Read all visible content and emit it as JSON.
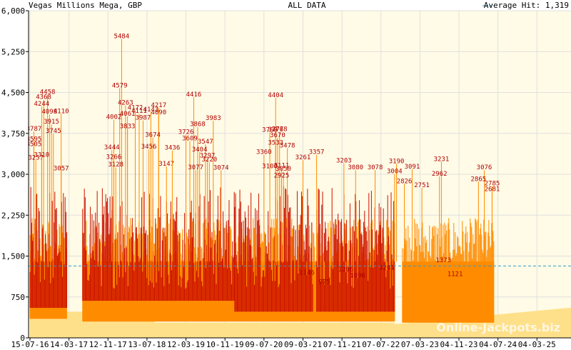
{
  "chart_data": {
    "type": "bar",
    "title": "Vegas Millions Mega, GBP",
    "subtitle": "ALL DATA",
    "legend": {
      "label": "Average Hit: 1,319",
      "placement": "top-right"
    },
    "average_hit": 1319,
    "ylim": [
      0,
      6000
    ],
    "yticks": [
      0,
      750,
      1500,
      2250,
      3000,
      3750,
      4500,
      5250,
      6000
    ],
    "ytick_labels": [
      "0",
      "750",
      "1,500",
      "2,250",
      "3,000",
      "3,750",
      "4,500",
      "5,250",
      "6,000"
    ],
    "xticks": [
      "15-07-16",
      "14-03-17",
      "12-11-17",
      "13-07-18",
      "12-03-19",
      "10-11-19",
      "09-07-20",
      "09-03-21",
      "07-11-21",
      "07-07-22",
      "07-03-23",
      "04-11-23",
      "04-07-24",
      "04-03-25"
    ],
    "watermark": "Online-Jackpots.biz",
    "colors": {
      "plot_bg": "#fffbe6",
      "baseline_fill": "#ffe08a",
      "hit_fill": "#ff8c00",
      "red_hits": "#cc1100",
      "average_line": "#3399cc",
      "label": "#b00000",
      "grid": "#e0e0e0"
    },
    "baseline": {
      "x": [
        0.0,
        0.3,
        0.3,
        3.2,
        3.2,
        9.35,
        9.35,
        13.8
      ],
      "y": [
        350,
        350,
        480,
        480,
        280,
        280,
        250,
        550
      ]
    },
    "segments": [
      {
        "x0": 0.0,
        "x1": 0.95,
        "base": 350,
        "orange_top": 2300,
        "red": true
      },
      {
        "x0": 1.35,
        "x1": 5.25,
        "base": 480,
        "orange_top": 2300,
        "red": true
      },
      {
        "x0": 5.25,
        "x1": 7.25,
        "base": 280,
        "orange_top": 1850,
        "red": true
      },
      {
        "x0": 7.35,
        "x1": 9.35,
        "base": 280,
        "orange_top": 1700,
        "red": true
      }
    ],
    "peaks": [
      {
        "x": 0.45,
        "y": 4458,
        "label": "4458"
      },
      {
        "x": 0.35,
        "y": 4368,
        "label": "4368"
      },
      {
        "x": 0.3,
        "y": 4244,
        "label": "4244"
      },
      {
        "x": 0.5,
        "y": 4098,
        "label": "4098"
      },
      {
        "x": 0.8,
        "y": 4110,
        "label": "4110"
      },
      {
        "x": 0.55,
        "y": 3915,
        "label": "3915"
      },
      {
        "x": 0.1,
        "y": 3787,
        "label": "3787"
      },
      {
        "x": 0.6,
        "y": 3745,
        "label": "3745"
      },
      {
        "x": 0.1,
        "y": 3595,
        "label": "3595"
      },
      {
        "x": 0.1,
        "y": 3505,
        "label": "3505"
      },
      {
        "x": 0.15,
        "y": 3257,
        "label": "3257"
      },
      {
        "x": 0.3,
        "y": 3310,
        "label": "3310"
      },
      {
        "x": 0.8,
        "y": 3057,
        "label": "3057"
      },
      {
        "x": 2.35,
        "y": 5484,
        "label": "5484"
      },
      {
        "x": 2.3,
        "y": 4579,
        "label": "4579"
      },
      {
        "x": 2.45,
        "y": 4263,
        "label": "4263"
      },
      {
        "x": 2.5,
        "y": 4061,
        "label": "4061"
      },
      {
        "x": 2.7,
        "y": 4172,
        "label": "4172"
      },
      {
        "x": 2.8,
        "y": 4111,
        "label": "4111"
      },
      {
        "x": 3.1,
        "y": 4143,
        "label": "4143"
      },
      {
        "x": 3.3,
        "y": 4217,
        "label": "4217"
      },
      {
        "x": 3.3,
        "y": 4090,
        "label": "4090"
      },
      {
        "x": 2.15,
        "y": 4002,
        "label": "4002"
      },
      {
        "x": 2.9,
        "y": 3987,
        "label": "3987"
      },
      {
        "x": 2.5,
        "y": 3833,
        "label": "3833"
      },
      {
        "x": 3.15,
        "y": 3674,
        "label": "3674"
      },
      {
        "x": 2.1,
        "y": 3444,
        "label": "3444"
      },
      {
        "x": 3.05,
        "y": 3456,
        "label": "3456"
      },
      {
        "x": 2.15,
        "y": 3266,
        "label": "3266"
      },
      {
        "x": 2.2,
        "y": 3128,
        "label": "3128"
      },
      {
        "x": 3.5,
        "y": 3147,
        "label": "3147"
      },
      {
        "x": 3.65,
        "y": 3436,
        "label": "3436"
      },
      {
        "x": 4.2,
        "y": 4416,
        "label": "4416"
      },
      {
        "x": 4.3,
        "y": 3868,
        "label": "3868"
      },
      {
        "x": 4.7,
        "y": 3983,
        "label": "3983"
      },
      {
        "x": 4.5,
        "y": 3547,
        "label": "3547"
      },
      {
        "x": 4.0,
        "y": 3726,
        "label": "3726"
      },
      {
        "x": 4.1,
        "y": 3609,
        "label": "3609"
      },
      {
        "x": 4.35,
        "y": 3404,
        "label": "3404"
      },
      {
        "x": 4.55,
        "y": 3297,
        "label": "3297"
      },
      {
        "x": 4.6,
        "y": 3220,
        "label": "3220"
      },
      {
        "x": 4.25,
        "y": 3077,
        "label": "3077"
      },
      {
        "x": 4.9,
        "y": 3074,
        "label": "3074"
      },
      {
        "x": 6.3,
        "y": 4404,
        "label": "4404"
      },
      {
        "x": 6.15,
        "y": 3769,
        "label": "3769"
      },
      {
        "x": 6.3,
        "y": 3776,
        "label": "3776"
      },
      {
        "x": 6.4,
        "y": 3778,
        "label": "3778"
      },
      {
        "x": 6.35,
        "y": 3670,
        "label": "3670"
      },
      {
        "x": 6.6,
        "y": 3478,
        "label": "3478"
      },
      {
        "x": 6.3,
        "y": 3533,
        "label": "3533"
      },
      {
        "x": 6.0,
        "y": 3360,
        "label": "3360"
      },
      {
        "x": 6.15,
        "y": 3100,
        "label": "3100"
      },
      {
        "x": 6.45,
        "y": 3111,
        "label": "3111"
      },
      {
        "x": 6.5,
        "y": 3050,
        "label": "3050"
      },
      {
        "x": 6.45,
        "y": 2925,
        "label": "2925"
      },
      {
        "x": 7.0,
        "y": 3261,
        "label": "3261"
      },
      {
        "x": 7.35,
        "y": 3357,
        "label": "3357"
      },
      {
        "x": 8.05,
        "y": 3203,
        "label": "3203"
      },
      {
        "x": 8.35,
        "y": 3080,
        "label": "3080"
      },
      {
        "x": 8.85,
        "y": 3078,
        "label": "3078"
      },
      {
        "x": 9.4,
        "y": 3190,
        "label": "3190"
      },
      {
        "x": 9.35,
        "y": 3004,
        "label": "3004"
      },
      {
        "x": 9.8,
        "y": 3091,
        "label": "3091"
      },
      {
        "x": 10.55,
        "y": 3231,
        "label": "3231"
      },
      {
        "x": 10.5,
        "y": 2962,
        "label": "2962"
      },
      {
        "x": 11.65,
        "y": 3076,
        "label": "3076"
      },
      {
        "x": 11.5,
        "y": 2865,
        "label": "2865"
      },
      {
        "x": 11.85,
        "y": 2785,
        "label": "2785"
      },
      {
        "x": 11.85,
        "y": 2681,
        "label": "2681"
      },
      {
        "x": 9.6,
        "y": 2826,
        "label": "2826"
      },
      {
        "x": 10.05,
        "y": 2751,
        "label": "2751"
      },
      {
        "x": 7.1,
        "y": 1146,
        "label": "1146"
      },
      {
        "x": 7.55,
        "y": 975,
        "label": "975"
      },
      {
        "x": 8.1,
        "y": 1206,
        "label": "1206"
      },
      {
        "x": 8.4,
        "y": 1096,
        "label": "1096"
      },
      {
        "x": 9.15,
        "y": 1241,
        "label": "1241"
      },
      {
        "x": 10.6,
        "y": 1373,
        "label": "1373"
      },
      {
        "x": 10.9,
        "y": 1121,
        "label": "1121"
      }
    ]
  }
}
